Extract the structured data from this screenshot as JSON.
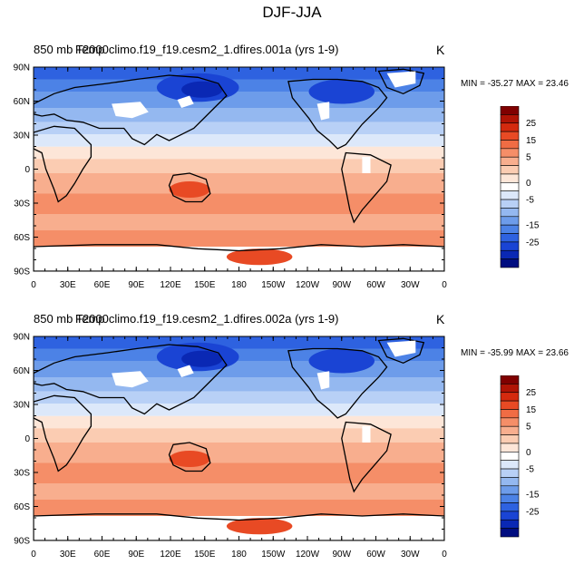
{
  "figure": {
    "title": "DJF-JJA"
  },
  "panels": [
    {
      "title_a": "850 mb Temp",
      "title_b": "F2000climo.f19_f19.cesm2_1.dfires.001a (yrs 1-9)",
      "units": "K",
      "minmax": "MIN = -35.27 MAX =  23.46"
    },
    {
      "title_a": "850 mb Temp",
      "title_b": "F2000climo.f19_f19.cesm2_1.dfires.002a (yrs 1-9)",
      "units": "K",
      "minmax": "MIN = -35.99 MAX =  23.66"
    }
  ],
  "map_axes": {
    "lat_labels": [
      "90N",
      "60N",
      "30N",
      "0",
      "30S",
      "60S",
      "90S"
    ],
    "lon_labels": [
      "0",
      "30E",
      "60E",
      "90E",
      "120E",
      "150E",
      "180",
      "150W",
      "120W",
      "90W",
      "60W",
      "30W",
      "0"
    ]
  },
  "colorbar": {
    "labels": [
      "25",
      "15",
      "5",
      "0",
      "-5",
      "-15",
      "-25"
    ],
    "colors": [
      "#800000",
      "#b01405",
      "#d42a0e",
      "#e84a24",
      "#f06c44",
      "#f58e68",
      "#f8ae8e",
      "#fbccb2",
      "#fde6d8",
      "#ffffff",
      "#dce8fa",
      "#b8d0f6",
      "#94b8f0",
      "#6d9cea",
      "#4c82e6",
      "#2e62e0",
      "#1a44d4",
      "#0a28b4",
      "#000d80"
    ]
  }
}
